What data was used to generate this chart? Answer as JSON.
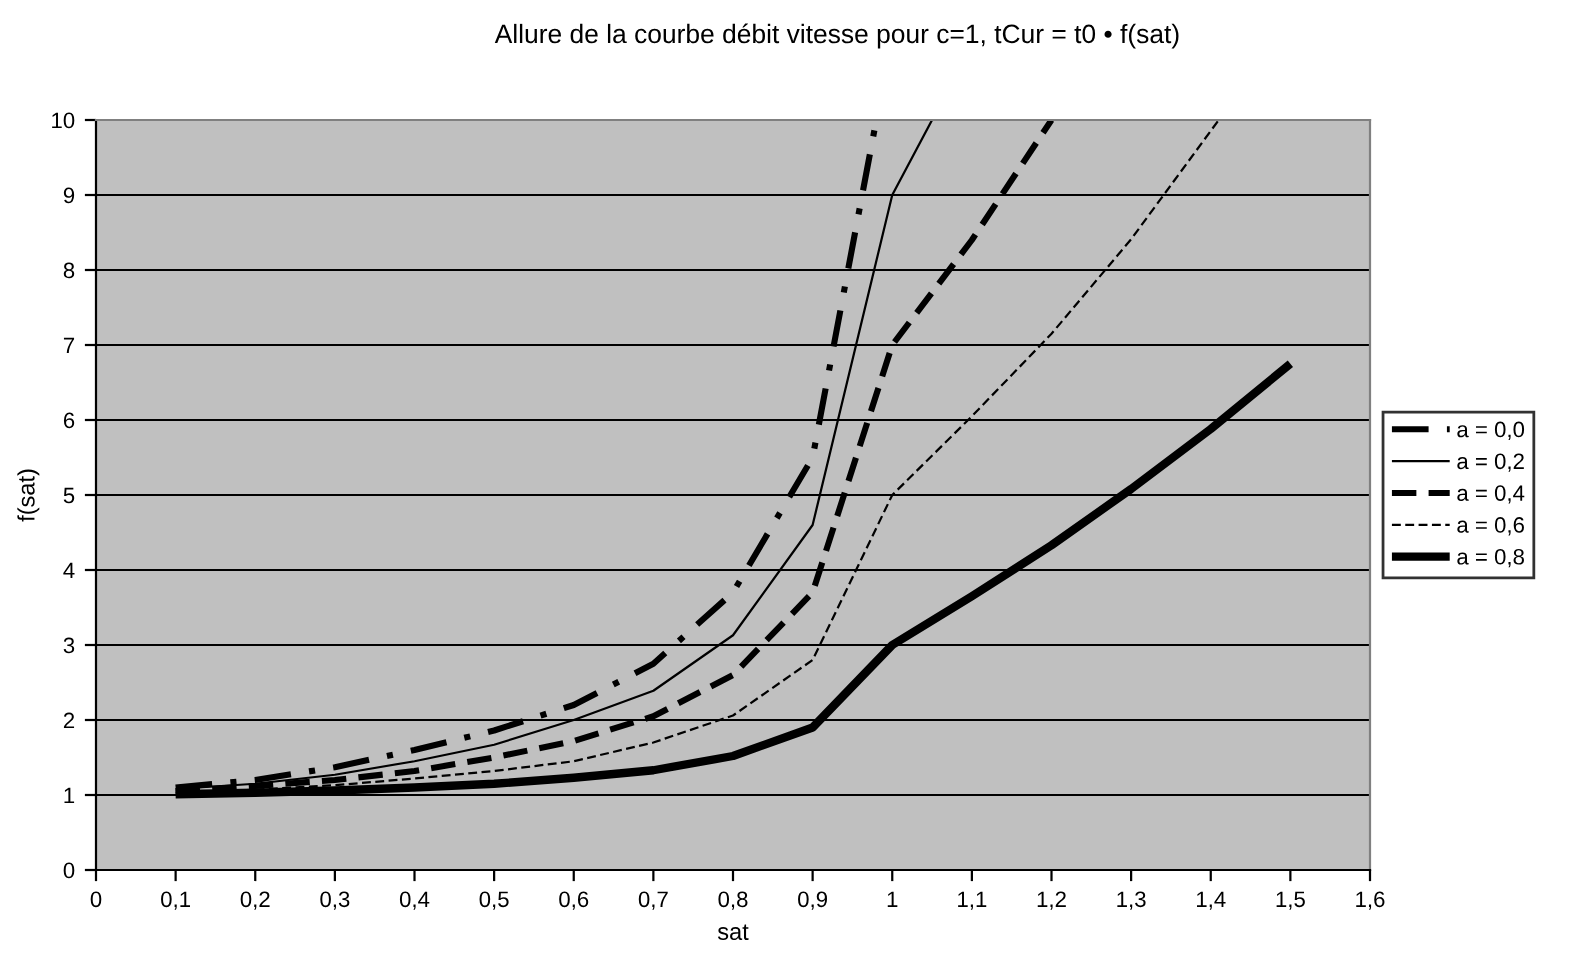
{
  "chart_data": {
    "type": "line",
    "title": "Allure de la courbe débit vitesse pour c=1, tCur = t0 • f(sat)",
    "xlabel": "sat",
    "ylabel": "f(sat)",
    "xlim": [
      0,
      1.6
    ],
    "xticks": [
      0,
      {
        "value": 0.1,
        "label": "0,1"
      },
      {
        "value": 0.2,
        "label": "0,2"
      },
      {
        "value": 0.3,
        "label": "0,3"
      },
      {
        "value": 0.4,
        "label": "0,4"
      },
      {
        "value": 0.5,
        "label": "0,5"
      },
      {
        "value": 0.6,
        "label": "0,6"
      },
      {
        "value": 0.7,
        "label": "0,7"
      },
      {
        "value": 0.8,
        "label": "0,8"
      },
      {
        "value": 0.9,
        "label": "0,9"
      },
      1,
      {
        "value": 1.1,
        "label": "1,1"
      },
      {
        "value": 1.2,
        "label": "1,2"
      },
      {
        "value": 1.3,
        "label": "1,3"
      },
      {
        "value": 1.4,
        "label": "1,4"
      },
      {
        "value": 1.5,
        "label": "1,5"
      },
      {
        "value": 1.6,
        "label": "1,6"
      }
    ],
    "ylim": [
      0,
      10
    ],
    "yticks": [
      0,
      1,
      2,
      3,
      4,
      5,
      6,
      7,
      8,
      9,
      10
    ],
    "grid": "y",
    "legend": "right",
    "marker": "none",
    "series": [
      {
        "name": "a = 0,0",
        "color": "#000000",
        "line_style": "dashdot",
        "x": [
          0.1,
          0.2,
          0.3,
          0.4,
          0.5,
          0.6,
          0.7,
          0.8,
          0.9,
          0.98
        ],
        "values": [
          1.1,
          1.2,
          1.37,
          1.6,
          1.86,
          2.2,
          2.75,
          3.7,
          5.5,
          10
        ]
      },
      {
        "name": "a = 0,2",
        "color": "#000000",
        "line_style": "solid",
        "x": [
          0.1,
          0.2,
          0.3,
          0.4,
          0.5,
          0.6,
          0.7,
          0.8,
          0.9,
          1.0,
          1.05
        ],
        "values": [
          1.08,
          1.15,
          1.27,
          1.45,
          1.67,
          2.0,
          2.39,
          3.13,
          4.6,
          9,
          10
        ]
      },
      {
        "name": "a = 0,4",
        "color": "#000000",
        "line_style": "dashed",
        "x": [
          0.1,
          0.2,
          0.3,
          0.4,
          0.5,
          0.6,
          0.7,
          0.8,
          0.9,
          1.0,
          1.1,
          1.2
        ],
        "values": [
          1.05,
          1.12,
          1.2,
          1.32,
          1.5,
          1.72,
          2.05,
          2.6,
          3.7,
          7,
          8.4,
          10
        ]
      },
      {
        "name": "a = 0,6",
        "color": "#000000",
        "line_style": "dashed",
        "x": [
          0.1,
          0.2,
          0.3,
          0.4,
          0.5,
          0.6,
          0.7,
          0.8,
          0.9,
          1.0,
          1.1,
          1.2,
          1.3,
          1.41
        ],
        "values": [
          1.03,
          1.07,
          1.13,
          1.22,
          1.32,
          1.45,
          1.7,
          2.06,
          2.8,
          5,
          6.05,
          7.15,
          8.41,
          10
        ]
      },
      {
        "name": "a = 0,8",
        "color": "#000000",
        "line_style": "solid",
        "x": [
          0.1,
          0.2,
          0.3,
          0.4,
          0.5,
          0.6,
          0.7,
          0.8,
          0.9,
          1.0,
          1.1,
          1.2,
          1.3,
          1.4,
          1.5
        ],
        "values": [
          1.01,
          1.03,
          1.06,
          1.1,
          1.15,
          1.23,
          1.33,
          1.52,
          1.9,
          3.0,
          3.65,
          4.33,
          5.08,
          5.88,
          6.75
        ]
      }
    ]
  }
}
